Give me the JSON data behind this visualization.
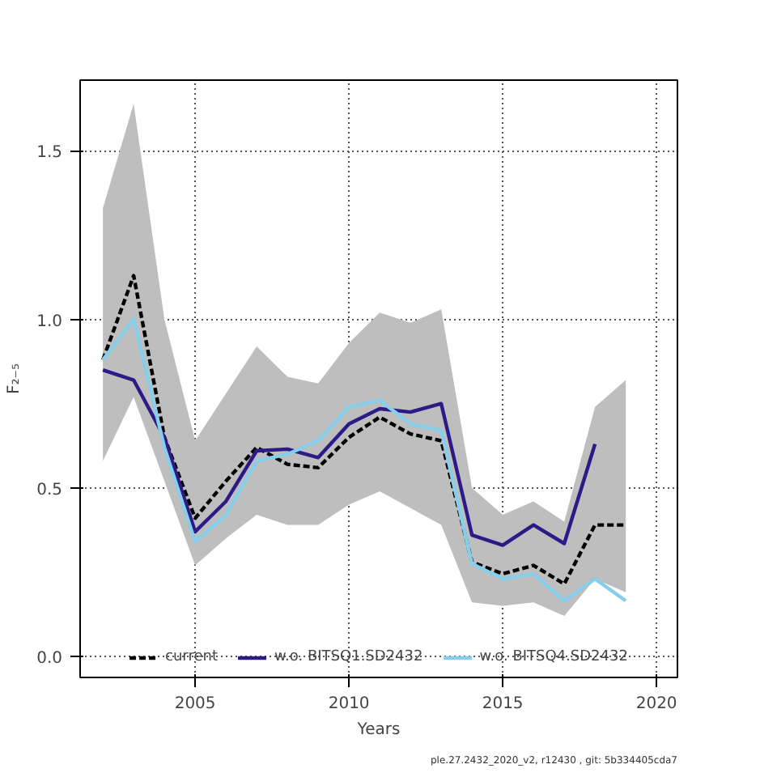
{
  "chart_data": {
    "type": "line",
    "xlabel": "Years",
    "ylabel": "F₂₋₅",
    "x": [
      2002,
      2003,
      2004,
      2005,
      2006,
      2007,
      2008,
      2009,
      2010,
      2011,
      2012,
      2013,
      2014,
      2015,
      2016,
      2017,
      2018,
      2019
    ],
    "series": [
      {
        "name": "current",
        "color": "#000000",
        "line_style": "dashed",
        "values": [
          0.88,
          1.13,
          0.65,
          0.41,
          0.52,
          0.62,
          0.57,
          0.56,
          0.65,
          0.71,
          0.66,
          0.64,
          0.28,
          0.245,
          0.27,
          0.215,
          0.39,
          0.39
        ],
        "lower": [
          0.58,
          0.77,
          0.52,
          0.27,
          0.35,
          0.42,
          0.39,
          0.39,
          0.45,
          0.49,
          0.44,
          0.39,
          0.16,
          0.15,
          0.16,
          0.12,
          0.23,
          0.19
        ],
        "upper": [
          1.33,
          1.64,
          1.0,
          0.64,
          0.78,
          0.92,
          0.83,
          0.81,
          0.93,
          1.02,
          0.99,
          1.03,
          0.5,
          0.42,
          0.46,
          0.4,
          0.74,
          0.82
        ]
      },
      {
        "name": "w.o. BITSQ1.SD2432",
        "color": "#2e1a87",
        "line_style": "solid",
        "values": [
          0.85,
          0.82,
          0.65,
          0.37,
          0.46,
          0.61,
          0.615,
          0.59,
          0.69,
          0.735,
          0.725,
          0.75,
          0.36,
          0.33,
          0.39,
          0.335,
          0.63,
          null
        ]
      },
      {
        "name": "w.o. BITSQ4.SD2432",
        "color": "#87ceeb",
        "line_style": "solid",
        "values": [
          0.88,
          1.0,
          0.62,
          0.34,
          0.42,
          0.58,
          0.6,
          0.64,
          0.74,
          0.76,
          0.69,
          0.67,
          0.275,
          0.23,
          0.245,
          0.165,
          0.23,
          0.165
        ]
      }
    ],
    "xlim": [
      2001.26,
      2020.68
    ],
    "ylim": [
      -0.0625,
      1.71
    ],
    "xticks": [
      2005,
      2010,
      2015,
      2020
    ],
    "yticks": [
      {
        "value": 0,
        "label": "0.0"
      },
      {
        "value": 0.5,
        "label": "0.5"
      },
      {
        "value": 1.0,
        "label": "1.0"
      },
      {
        "value": 1.5,
        "label": "1.5"
      }
    ],
    "grid": true,
    "legend": "bottom",
    "annotations": [
      "ple.27.2432_2020_v2, r12430 , git: 5b334405cda7"
    ]
  }
}
